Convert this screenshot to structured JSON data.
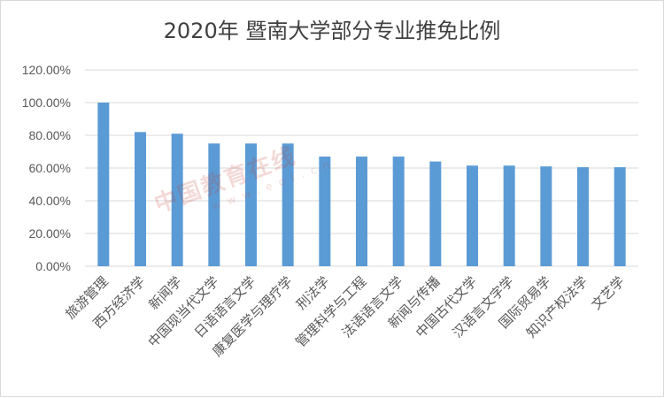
{
  "chart_data": {
    "type": "bar",
    "title": "2020年 暨南大学部分专业推免比例",
    "categories": [
      "旅游管理",
      "西方经济学",
      "新闻学",
      "中国现当代文学",
      "日语语言文学",
      "康复医学与理疗学",
      "刑法学",
      "管理科学与工程",
      "法语语言文学",
      "新闻与传播",
      "中国古代文学",
      "汉语言文字学",
      "国际贸易学",
      "知识产权法学",
      "文艺学"
    ],
    "values": [
      100,
      82,
      81,
      75,
      75,
      75,
      67,
      67,
      67,
      64,
      61.5,
      61.5,
      61,
      60.5,
      60.5
    ],
    "ylim": [
      0,
      120
    ],
    "yticks": [
      "0.00%",
      "20.00%",
      "40.00%",
      "60.00%",
      "80.00%",
      "100.00%",
      "120.00%"
    ],
    "xlabel": "",
    "ylabel": "",
    "bar_color": "#5b9bd5",
    "grid": true
  },
  "watermark": {
    "text": "中国教育在线",
    "sub": "www.eol.cn"
  }
}
